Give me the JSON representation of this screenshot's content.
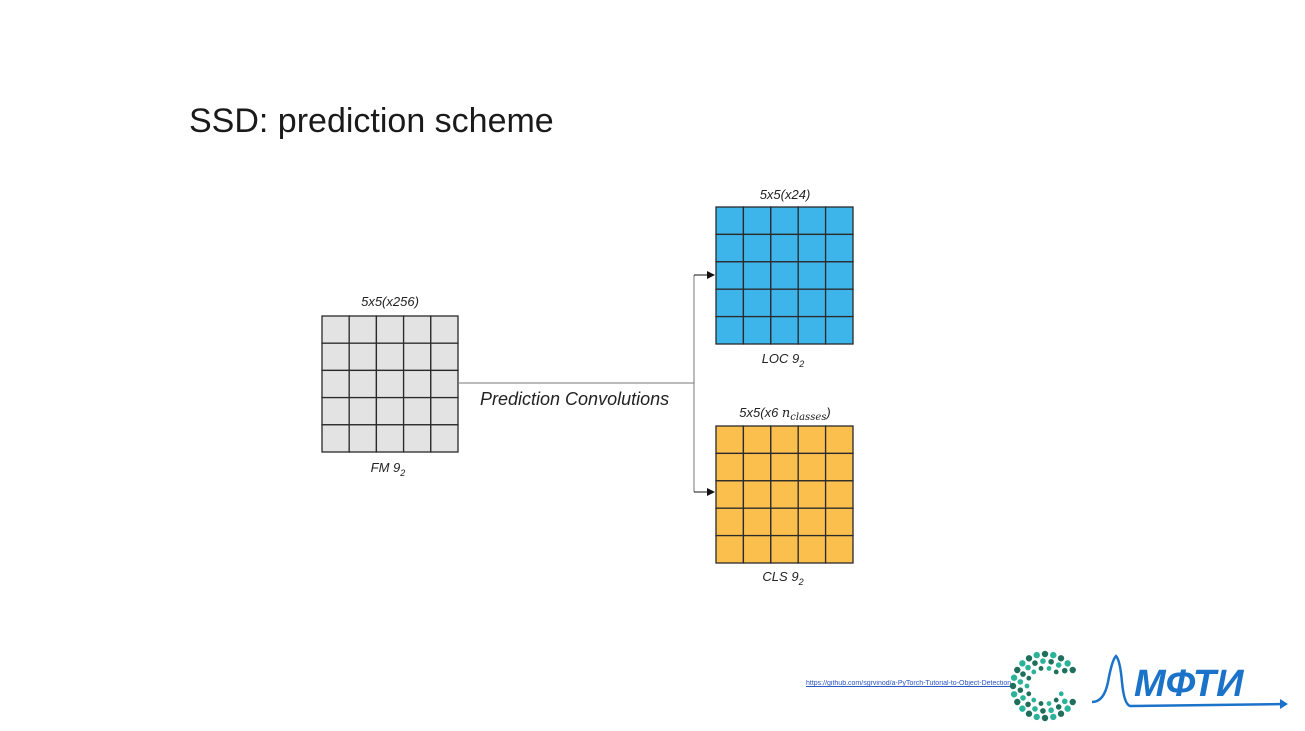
{
  "slide": {
    "title": "SSD: prediction scheme"
  },
  "diagram": {
    "feature_map": {
      "top_label": "5x5(x256)",
      "bottom_label": "FM 9",
      "sub": "2",
      "fill": "#e3e3e3"
    },
    "loc": {
      "top_label": "5x5(x24)",
      "bottom_label": "LOC 9",
      "sub": "2",
      "fill": "#3db5ea"
    },
    "cls": {
      "top_label_prefix": "5x5(x6 ",
      "top_label_n": "n",
      "top_label_sub": "classes",
      "top_label_suffix": ")",
      "bottom_label": "CLS 9",
      "sub": "2",
      "fill": "#fbbf4e"
    },
    "edge_label": "Prediction Convolutions",
    "grid_rows": 5,
    "grid_cols": 5
  },
  "footer": {
    "source_link": "https://github.com/sgrvinod/a-PyTorch-Tutorial-to-Object-Detection",
    "brand_text": "МФТИ",
    "brand_color": "#1a73c9",
    "emblem_colors": [
      "#1e6f5c",
      "#2bb39a",
      "#1a73c9"
    ]
  }
}
